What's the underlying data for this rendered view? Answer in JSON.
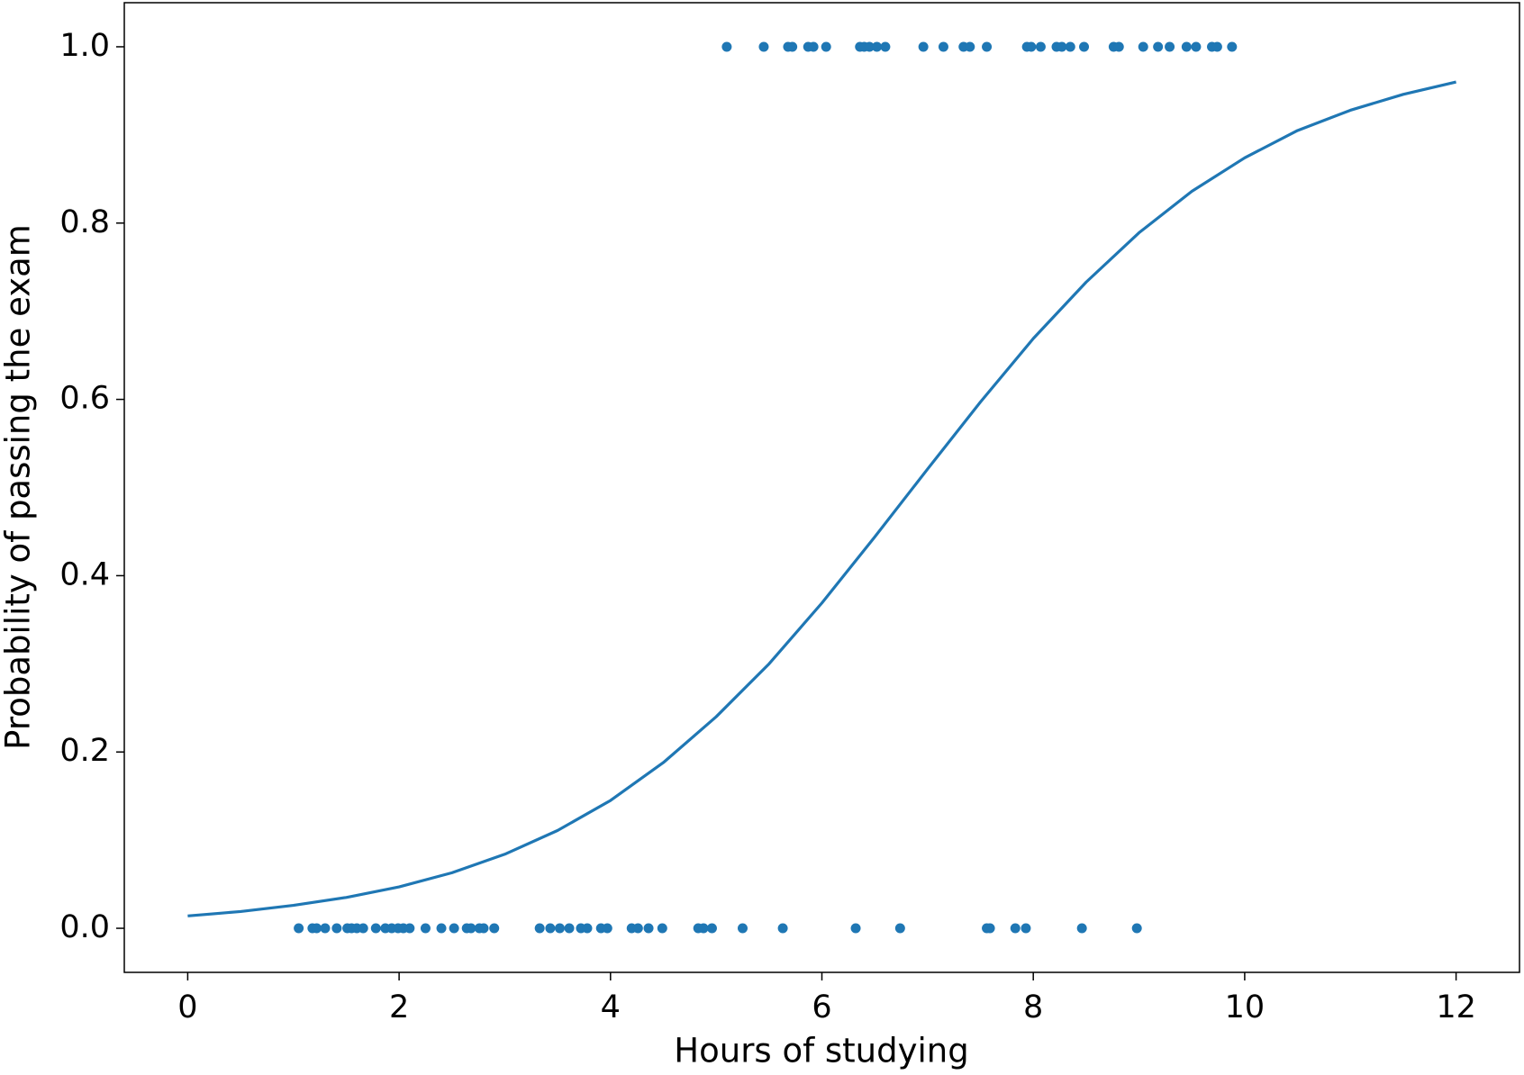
{
  "chart_data": {
    "type": "scatter",
    "xlabel": "Hours of studying",
    "ylabel": "Probability of passing the exam",
    "xlim": [
      -0.6,
      12.6
    ],
    "ylim": [
      -0.05,
      1.05
    ],
    "xticks": [
      0,
      2,
      4,
      6,
      8,
      10,
      12
    ],
    "yticks": [
      {
        "value": 0,
        "label": "0.0"
      },
      {
        "value": 0.2,
        "label": "0.2"
      },
      {
        "value": 0.4,
        "label": "0.4"
      },
      {
        "value": 0.6,
        "label": "0.6"
      },
      {
        "value": 0.8,
        "label": "0.8"
      },
      {
        "value": 1,
        "label": "1.0"
      }
    ],
    "grid": false,
    "series": [
      {
        "type": "scatter",
        "color": "#1f77b4",
        "x": [
          5.1,
          5.45,
          5.68,
          5.72,
          5.87,
          5.92,
          6.04,
          6.36,
          6.4,
          6.45,
          6.52,
          6.6,
          6.96,
          7.15,
          7.34,
          7.4,
          7.56,
          7.94,
          7.98,
          8.07,
          8.22,
          8.27,
          8.35,
          8.48,
          8.76,
          8.81,
          9.04,
          9.18,
          9.29,
          9.45,
          9.54,
          9.69,
          9.74,
          9.88,
          1.05,
          1.18,
          1.22,
          1.3,
          1.41,
          1.51,
          1.55,
          1.6,
          1.66,
          1.78,
          1.87,
          1.93,
          1.99,
          2.04,
          2.1,
          2.25,
          2.4,
          2.52,
          2.64,
          2.68,
          2.76,
          2.8,
          2.9,
          3.33,
          3.43,
          3.52,
          3.61,
          3.72,
          3.78,
          3.91,
          3.97,
          4.2,
          4.26,
          4.36,
          4.49,
          4.83,
          4.88,
          4.96,
          5.25,
          5.63,
          6.32,
          6.74,
          7.56,
          7.59,
          7.83,
          7.93,
          8.46,
          8.98
        ],
        "values": [
          1,
          1,
          1,
          1,
          1,
          1,
          1,
          1,
          1,
          1,
          1,
          1,
          1,
          1,
          1,
          1,
          1,
          1,
          1,
          1,
          1,
          1,
          1,
          1,
          1,
          1,
          1,
          1,
          1,
          1,
          1,
          1,
          1,
          1,
          0,
          0,
          0,
          0,
          0,
          0,
          0,
          0,
          0,
          0,
          0,
          0,
          0,
          0,
          0,
          0,
          0,
          0,
          0,
          0,
          0,
          0,
          0,
          0,
          0,
          0,
          0,
          0,
          0,
          0,
          0,
          0,
          0,
          0,
          0,
          0,
          0,
          0,
          0,
          0,
          0,
          0,
          0,
          0,
          0,
          0,
          0,
          0
        ]
      },
      {
        "type": "line",
        "color": "#1f77b4",
        "x": [
          0,
          0.5,
          1,
          1.5,
          2,
          2.5,
          3,
          3.5,
          4,
          4.5,
          5,
          5.5,
          6,
          6.5,
          7,
          7.5,
          8,
          8.5,
          9,
          9.5,
          10,
          10.5,
          11,
          11.5,
          12
        ],
        "values": [
          0.014,
          0.019,
          0.026,
          0.035,
          0.047,
          0.063,
          0.084,
          0.111,
          0.145,
          0.188,
          0.24,
          0.3,
          0.369,
          0.444,
          0.521,
          0.597,
          0.669,
          0.733,
          0.789,
          0.836,
          0.874,
          0.905,
          0.928,
          0.946,
          0.96
        ]
      }
    ]
  }
}
